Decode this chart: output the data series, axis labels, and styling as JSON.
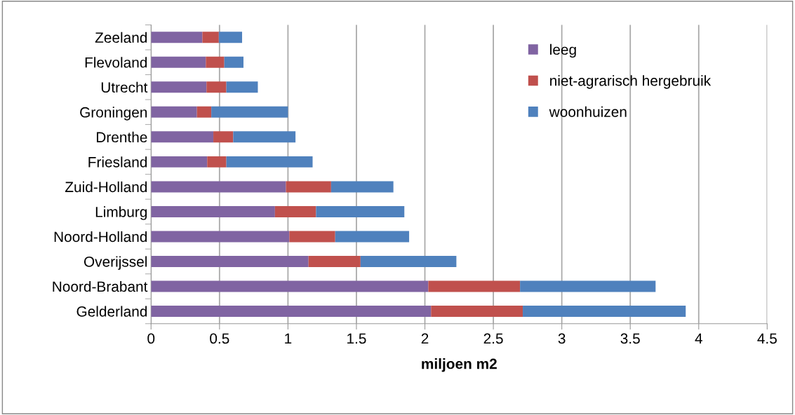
{
  "chart_data": {
    "type": "bar",
    "orientation": "horizontal",
    "stacked": true,
    "xlabel": "miljoen m2",
    "categories": [
      "Zeeland",
      "Flevoland",
      "Utrecht",
      "Groningen",
      "Drenthe",
      "Friesland",
      "Zuid-Holland",
      "Limburg",
      "Noord-Holland",
      "Overijssel",
      "Noord-Brabant",
      "Gelderland"
    ],
    "series": [
      {
        "name": "leeg",
        "color": "#8064a2",
        "values": [
          0.375,
          0.4,
          0.405,
          0.335,
          0.455,
          0.41,
          0.985,
          0.905,
          1.01,
          1.15,
          2.025,
          2.045
        ]
      },
      {
        "name": "niet-agrarisch hergebruik",
        "color": "#c0504d",
        "values": [
          0.12,
          0.135,
          0.145,
          0.105,
          0.145,
          0.14,
          0.33,
          0.3,
          0.335,
          0.38,
          0.67,
          0.67
        ]
      },
      {
        "name": "woonhuizen",
        "color": "#4f81bd",
        "values": [
          0.17,
          0.14,
          0.23,
          0.56,
          0.455,
          0.63,
          0.455,
          0.645,
          0.54,
          0.7,
          0.99,
          1.19
        ]
      }
    ],
    "xlim": [
      0,
      4.5
    ],
    "xticks": [
      0,
      0.5,
      1,
      1.5,
      2,
      2.5,
      3,
      3.5,
      4,
      4.5
    ],
    "grid": "x",
    "legend": "top right"
  }
}
